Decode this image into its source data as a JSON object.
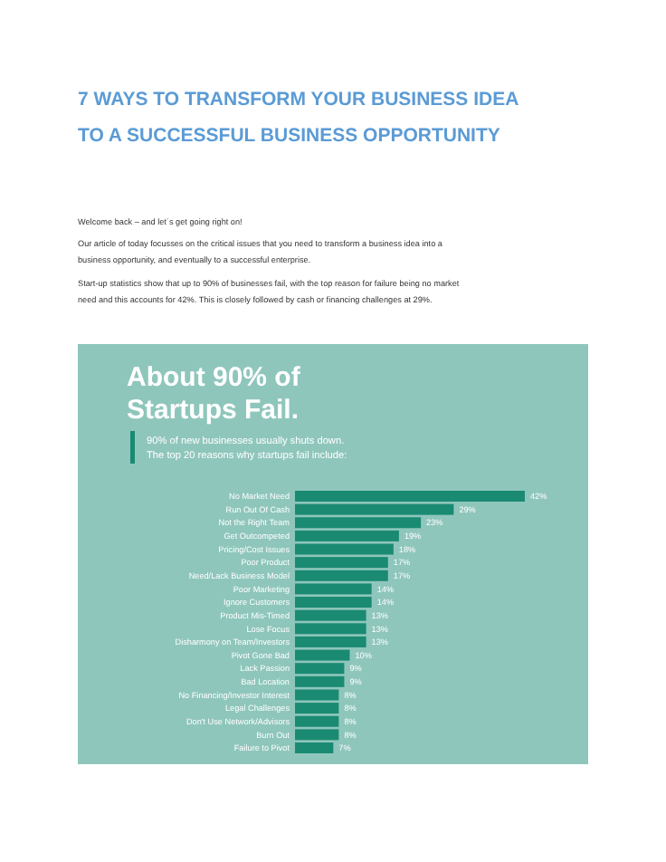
{
  "chart_data": {
    "type": "bar",
    "orientation": "horizontal",
    "title": "About 90% of Startups Fail.",
    "subtitle": "90% of new businesses usually shuts down.\nThe top 20 reasons why startups fail include:",
    "categories": [
      "No Market Need",
      "Run Out Of Cash",
      "Not the Right Team",
      "Get Outcompeted",
      "Pricing/Cost Issues",
      "Poor Product",
      "Need/Lack Business Model",
      "Poor Marketing",
      "Ignore Customers",
      "Product Mis-Timed",
      "Lose Focus",
      "Disharmony on Team/Investors",
      "Pivot Gone Bad",
      "Lack Passion",
      "Bad Location",
      "No Financing/Investor Interest",
      "Legal Challenges",
      "Don't Use Network/Advisors",
      "Burn Out",
      "Failure to Pivot"
    ],
    "values": [
      42,
      29,
      23,
      19,
      18,
      17,
      17,
      14,
      14,
      13,
      13,
      13,
      10,
      9,
      9,
      8,
      8,
      8,
      8,
      7
    ],
    "value_labels": [
      "42%",
      "29%",
      "23%",
      "19%",
      "18%",
      "17%",
      "17%",
      "14%",
      "14%",
      "13%",
      "13%",
      "13%",
      "10%",
      "9%",
      "9%",
      "8%",
      "8%",
      "8%",
      "8%",
      "7%"
    ],
    "color": "#1b8a73",
    "annotations": [
      "7 WAYS TO TRANSFORM YOUR BUSINESS IDEA",
      "TO A SUCCESSFUL BUSINESS OPPORTUNITY",
      "Welcome back – and let´s get going right on!",
      "Our article of today focusses on the critical issues that you need to transform a business idea into a",
      "business opportunity, and eventually to a successful enterprise.",
      "Start-up statistics show that up to 90% of businesses fail, with the top reason for failure being no market",
      "need and this accounts for 42%. This is closely followed by cash or financing challenges at 29%."
    ]
  }
}
